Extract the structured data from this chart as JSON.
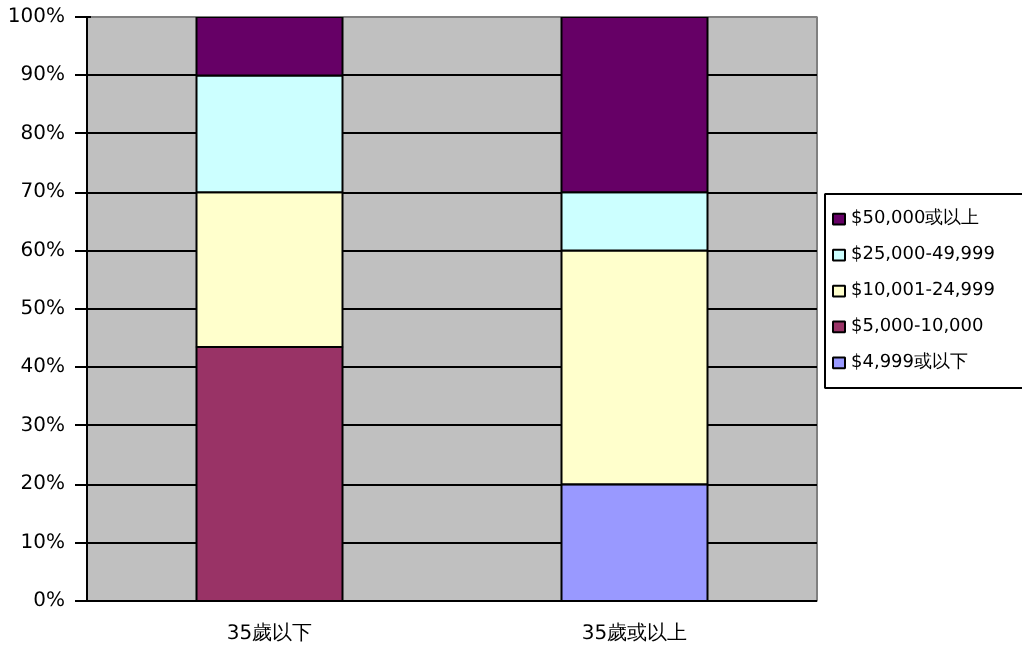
{
  "chart_data": {
    "type": "bar",
    "stacked": true,
    "categories": [
      "35歲以下",
      "35歲或以上"
    ],
    "series": [
      {
        "name": "$4,999或以下",
        "color": "#9999ff",
        "values": [
          0,
          20
        ]
      },
      {
        "name": "$5,000-10,000",
        "color": "#993366",
        "values": [
          43.5,
          0
        ]
      },
      {
        "name": "$10,001-24,999",
        "color": "#ffffcc",
        "values": [
          26.5,
          40
        ]
      },
      {
        "name": "$25,000-49,999",
        "color": "#ccffff",
        "values": [
          20,
          10
        ]
      },
      {
        "name": "$50,000或以上",
        "color": "#660066",
        "values": [
          10,
          30
        ]
      }
    ],
    "ylim": [
      0,
      100
    ],
    "yticks": [
      {
        "value": 0,
        "label": "0%"
      },
      {
        "value": 10,
        "label": "10%"
      },
      {
        "value": 20,
        "label": "20%"
      },
      {
        "value": 30,
        "label": "30%"
      },
      {
        "value": 40,
        "label": "40%"
      },
      {
        "value": 50,
        "label": "50%"
      },
      {
        "value": 60,
        "label": "60%"
      },
      {
        "value": 70,
        "label": "70%"
      },
      {
        "value": 80,
        "label": "80%"
      },
      {
        "value": 90,
        "label": "90%"
      },
      {
        "value": 100,
        "label": "100%"
      }
    ],
    "grid": "y",
    "legend": "right"
  }
}
